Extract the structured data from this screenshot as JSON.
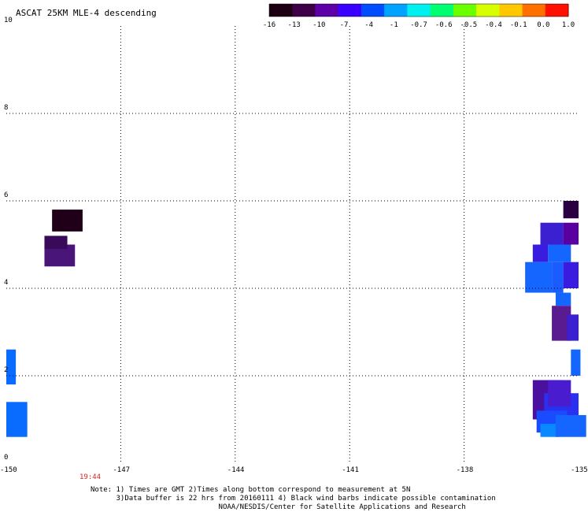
{
  "title": "ASCAT 25KM MLE-4 descending",
  "colorbar": {
    "labels": [
      "-16",
      "-13",
      "-10",
      "-7",
      "-4",
      "-1",
      "-0.7",
      "-0.6",
      "-0.5",
      "-0.4",
      "-0.1",
      "0.0",
      "1.0"
    ],
    "colors": [
      "#1c0012",
      "#3d0046",
      "#5d00a8",
      "#3a00ff",
      "#004cff",
      "#00a3ff",
      "#00f0f0",
      "#00ff70",
      "#6cff00",
      "#d8ff00",
      "#ffc800",
      "#ff7000",
      "#ff1000"
    ]
  },
  "axes": {
    "x_ticks": [
      "-150",
      "-147",
      "-144",
      "-141",
      "-138",
      "-135"
    ],
    "y_ticks": [
      "0",
      "2",
      "4",
      "6",
      "8",
      "10"
    ]
  },
  "time_label": "19:44",
  "notes": {
    "line1": "Note: 1) Times are GMT 2)Times along bottom correspond to measurement at 5N",
    "line2": "      3)Data buffer is 22 hrs from 20160111 4) Black wind barbs indicate possible contamination",
    "line3": "                              NOAA/NESDIS/Center for Satellite Applications and Research"
  },
  "swaths": [
    {
      "lon": -148.8,
      "lat": 5.3,
      "dlon": 0.8,
      "dlat": 0.5,
      "color": "#200018"
    },
    {
      "lon": -149.0,
      "lat": 4.5,
      "dlon": 0.8,
      "dlat": 0.5,
      "color": "#4a1578"
    },
    {
      "lon": -149.0,
      "lat": 4.9,
      "dlon": 0.6,
      "dlat": 0.3,
      "color": "#3a0a5a"
    },
    {
      "lon": -150.0,
      "lat": 1.8,
      "dlon": 0.25,
      "dlat": 0.8,
      "color": "#0a6cff"
    },
    {
      "lon": -150.0,
      "lat": 0.6,
      "dlon": 0.55,
      "dlat": 0.8,
      "color": "#0a6cff"
    },
    {
      "lon": -135.4,
      "lat": 5.6,
      "dlon": 0.4,
      "dlat": 0.4,
      "color": "#2a0040"
    },
    {
      "lon": -136.0,
      "lat": 5.0,
      "dlon": 0.6,
      "dlat": 0.5,
      "color": "#3a20d0"
    },
    {
      "lon": -135.4,
      "lat": 5.0,
      "dlon": 0.4,
      "dlat": 0.5,
      "color": "#5a00a0"
    },
    {
      "lon": -135.8,
      "lat": 4.6,
      "dlon": 0.6,
      "dlat": 0.4,
      "color": "#1466ff"
    },
    {
      "lon": -136.2,
      "lat": 4.6,
      "dlon": 0.4,
      "dlat": 0.4,
      "color": "#3a1ce0"
    },
    {
      "lon": -136.4,
      "lat": 3.9,
      "dlon": 0.7,
      "dlat": 0.7,
      "color": "#1466ff"
    },
    {
      "lon": -135.7,
      "lat": 3.9,
      "dlon": 0.3,
      "dlat": 0.7,
      "color": "#1a5cff"
    },
    {
      "lon": -135.4,
      "lat": 4.0,
      "dlon": 0.4,
      "dlat": 0.6,
      "color": "#3a1ce0"
    },
    {
      "lon": -135.6,
      "lat": 3.6,
      "dlon": 0.4,
      "dlat": 0.3,
      "color": "#1466ff"
    },
    {
      "lon": -135.7,
      "lat": 2.8,
      "dlon": 0.5,
      "dlat": 0.8,
      "color": "#5a1a90"
    },
    {
      "lon": -135.3,
      "lat": 2.8,
      "dlon": 0.3,
      "dlat": 0.6,
      "color": "#3a20d0"
    },
    {
      "lon": -135.2,
      "lat": 2.0,
      "dlon": 0.25,
      "dlat": 0.6,
      "color": "#1466ff"
    },
    {
      "lon": -136.2,
      "lat": 1.0,
      "dlon": 0.8,
      "dlat": 0.9,
      "color": "#4a10a0"
    },
    {
      "lon": -135.9,
      "lat": 0.8,
      "dlon": 0.9,
      "dlat": 0.8,
      "color": "#2a30f0"
    },
    {
      "lon": -136.1,
      "lat": 0.7,
      "dlon": 0.8,
      "dlat": 0.5,
      "color": "#1a4cff"
    },
    {
      "lon": -136.0,
      "lat": 0.6,
      "dlon": 0.5,
      "dlat": 0.3,
      "color": "#0a88ff"
    },
    {
      "lon": -135.6,
      "lat": 0.6,
      "dlon": 0.8,
      "dlat": 0.5,
      "color": "#1466ff"
    },
    {
      "lon": -135.8,
      "lat": 1.3,
      "dlon": 0.6,
      "dlat": 0.6,
      "color": "#4a1cd0"
    }
  ]
}
